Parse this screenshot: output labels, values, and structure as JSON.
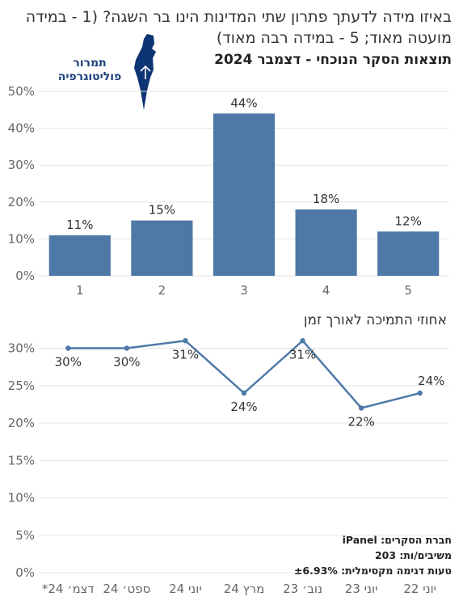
{
  "header": {
    "title": "באיזו מידה לדעתך פתרון שתי המדינות הינו בר השגה? (1 - במידה מועטה מאוד; 5 - במידה רבה מאוד)",
    "subtitle": "תוצאות הסקר הנוכחי - דצמבר 2024"
  },
  "logo": {
    "line1": "תמרור",
    "line2": "פוליטוגרפיה",
    "color": "#0d3473"
  },
  "footer": {
    "company": "חברת הסקרים: iPanel",
    "respondents": "משיבים/ות: 203",
    "error": "טעות דגימה מקסימלית: ±6.93%"
  },
  "colors": {
    "bar": "#4e79a7",
    "line": "#4e79a7",
    "grid": "#e6e6e6",
    "axis_text": "#666666"
  },
  "chart_data": [
    {
      "type": "bar",
      "title": "תוצאות הסקר הנוכחי - דצמבר 2024",
      "categories": [
        "1",
        "2",
        "3",
        "4",
        "5"
      ],
      "values": [
        11,
        15,
        44,
        18,
        12
      ],
      "data_labels": [
        "11%",
        "15%",
        "44%",
        "18%",
        "12%"
      ],
      "ylim": [
        0,
        50
      ],
      "yticks": [
        0,
        10,
        20,
        30,
        40,
        50
      ],
      "ytick_labels": [
        "0%",
        "10%",
        "20%",
        "30%",
        "40%",
        "50%"
      ],
      "grid": true
    },
    {
      "type": "line",
      "title": "אחוזי התמיכה לאורך זמן",
      "categories": [
        "יוני 22",
        "יוני 23",
        "נוב׳ 23",
        "מרץ 24",
        "יוני 24",
        "ספט׳ 24",
        "דצמ׳ 24*"
      ],
      "series_direction": "right-to-left",
      "points": [
        {
          "x": "יוני 22",
          "y": 24,
          "label": "24%"
        },
        {
          "x": "יוני 23",
          "y": 22,
          "label": "22%"
        },
        {
          "x": "נוב׳ 23",
          "y": 31,
          "label": "31%"
        },
        {
          "x": "מרץ 24",
          "y": 24,
          "label": "24%"
        },
        {
          "x": "יוני 24",
          "y": 31,
          "label": "31%"
        },
        {
          "x": "ספט׳ 24",
          "y": 30,
          "label": "30%"
        },
        {
          "x": "דצמ׳ 24*",
          "y": 30,
          "label": "30%"
        }
      ],
      "ylim": [
        0,
        32
      ],
      "yticks": [
        0,
        5,
        10,
        15,
        20,
        25,
        30
      ],
      "ytick_labels": [
        "0%",
        "5%",
        "10%",
        "15%",
        "20%",
        "25%",
        "30%"
      ],
      "grid": true
    }
  ]
}
